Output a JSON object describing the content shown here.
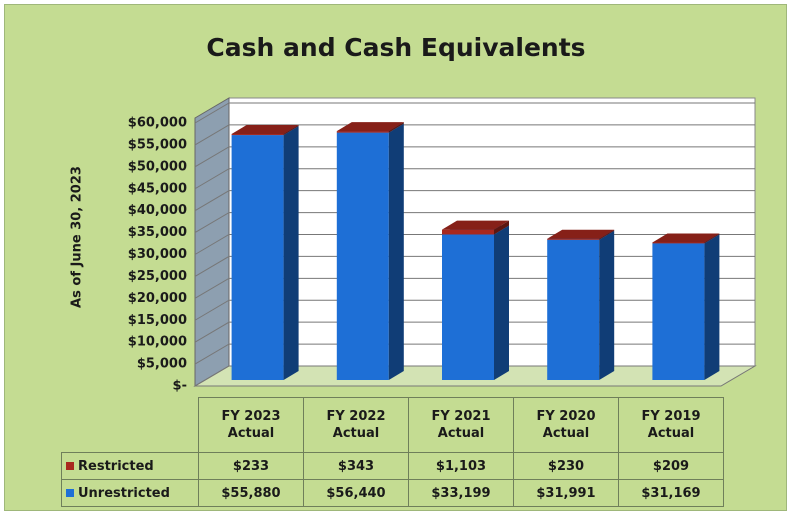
{
  "chart_data": {
    "type": "bar",
    "stacked": true,
    "title": "Cash and Cash Equivalents",
    "y_label": "As of June 30, 2023",
    "categories": [
      "FY 2023 Actual",
      "FY 2022 Actual",
      "FY 2021 Actual",
      "FY 2020 Actual",
      "FY 2019 Actual"
    ],
    "series": [
      {
        "name": "Restricted",
        "color": "#a8281e",
        "values": [
          233,
          343,
          1103,
          230,
          209
        ],
        "value_labels": [
          "$233",
          "$343",
          "$1,103",
          "$230",
          "$209"
        ]
      },
      {
        "name": "Unrestricted",
        "color": "#1e6fd6",
        "values": [
          55880,
          56440,
          33199,
          31991,
          31169
        ],
        "value_labels": [
          "$55,880",
          "$56,440",
          "$33,199",
          "$31,991",
          "$31,169"
        ]
      }
    ],
    "ylim": [
      0,
      60000
    ],
    "yticks": [
      {
        "value": 0,
        "label": "$-"
      },
      {
        "value": 5000,
        "label": "$5,000"
      },
      {
        "value": 10000,
        "label": "$10,000"
      },
      {
        "value": 15000,
        "label": "$15,000"
      },
      {
        "value": 20000,
        "label": "$20,000"
      },
      {
        "value": 25000,
        "label": "$25,000"
      },
      {
        "value": 30000,
        "label": "$30,000"
      },
      {
        "value": 35000,
        "label": "$35,000"
      },
      {
        "value": 40000,
        "label": "$40,000"
      },
      {
        "value": 45000,
        "label": "$45,000"
      },
      {
        "value": 50000,
        "label": "$50,000"
      },
      {
        "value": 55000,
        "label": "$55,000"
      },
      {
        "value": 60000,
        "label": "$60,000"
      }
    ],
    "grid": true
  }
}
